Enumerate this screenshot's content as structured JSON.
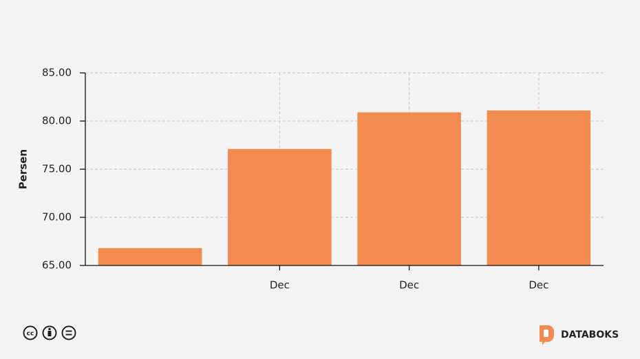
{
  "chart_data": {
    "type": "bar",
    "y_label": "Persen",
    "categories": [
      null,
      "Dec",
      "Dec",
      "Dec"
    ],
    "values": [
      66.8,
      77.1,
      80.9,
      81.1
    ],
    "color": "#f38b50",
    "ylim": [
      65,
      85
    ],
    "yticks": [
      {
        "value": 65,
        "label": "65.00"
      },
      {
        "value": 70,
        "label": "70.00"
      },
      {
        "value": 75,
        "label": "75.00"
      },
      {
        "value": 80,
        "label": "80.00"
      },
      {
        "value": 85,
        "label": "85.00"
      }
    ],
    "grid": true
  },
  "footer": {
    "brand": "DATABOKS"
  }
}
